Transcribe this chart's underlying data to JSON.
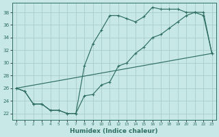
{
  "xlabel": "Humidex (Indice chaleur)",
  "xlim": [
    -0.5,
    23.5
  ],
  "ylim": [
    21.0,
    39.5
  ],
  "yticks": [
    22,
    24,
    26,
    28,
    30,
    32,
    34,
    36,
    38
  ],
  "xticks": [
    0,
    1,
    2,
    3,
    4,
    5,
    6,
    7,
    8,
    9,
    10,
    11,
    12,
    13,
    14,
    15,
    16,
    17,
    18,
    19,
    20,
    21,
    22,
    23
  ],
  "bg_color": "#c8e8e8",
  "grid_color": "#a8cccc",
  "line_color": "#2d6e60",
  "line1_y": [
    26,
    25.5,
    23.5,
    23.5,
    22.5,
    22.5,
    22.0,
    22.0,
    29.5,
    33.0,
    35.2,
    37.5,
    37.5,
    37.0,
    36.5,
    37.3,
    38.8,
    38.5,
    38.5,
    38.5,
    38.0,
    38.0,
    37.5,
    31.5
  ],
  "line2_y": [
    26,
    25.5,
    23.5,
    23.5,
    22.5,
    22.5,
    22.0,
    22.0,
    24.8,
    25.0,
    26.5,
    27.0,
    29.5,
    30.0,
    31.5,
    32.5,
    34.0,
    34.5,
    35.5,
    36.5,
    37.5,
    38.0,
    38.0,
    31.5
  ],
  "line3_x": [
    0,
    23
  ],
  "line3_y": [
    26,
    31.5
  ]
}
